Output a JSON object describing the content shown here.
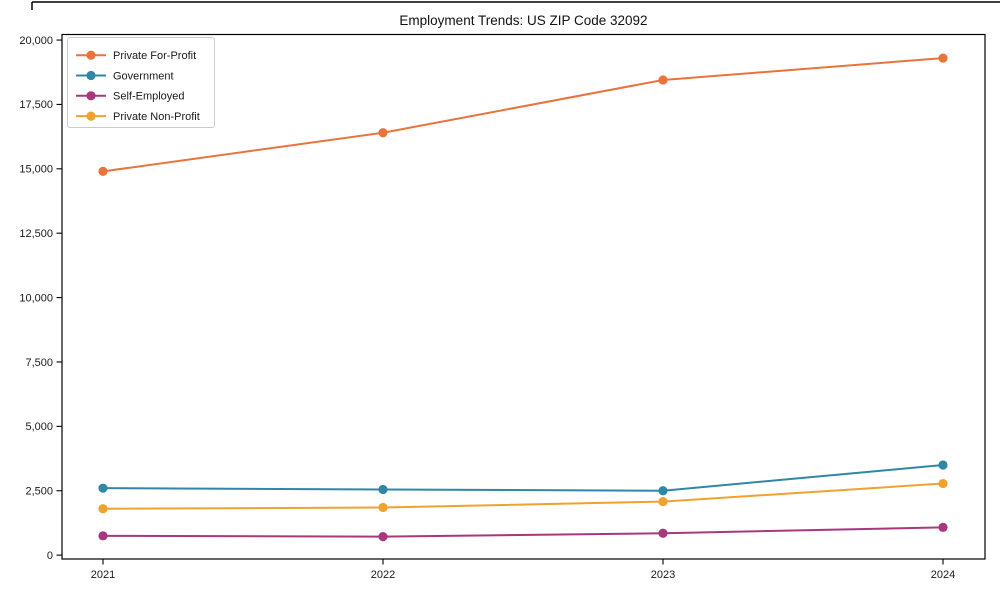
{
  "chart_data": {
    "type": "line",
    "title": "Employment Trends: US ZIP Code 32092",
    "x": [
      2021,
      2022,
      2023,
      2024
    ],
    "x_tick_labels": [
      "2021",
      "2022",
      "2023",
      "2024"
    ],
    "y_ticks": [
      0,
      2500,
      5000,
      7500,
      10000,
      12500,
      15000,
      17500,
      20000
    ],
    "y_tick_labels": [
      "0",
      "2,500",
      "5,000",
      "7,500",
      "10,000",
      "12,500",
      "15,000",
      "17,500",
      "20,000"
    ],
    "xlim": [
      2020.8536,
      2024.15
    ],
    "ylim": [
      -150,
      20215
    ],
    "grid": false,
    "legend_position": "upper-left",
    "marker": "circle",
    "series": [
      {
        "name": "Private For-Profit",
        "color": "#e8743b",
        "values": [
          14900,
          16400,
          18450,
          19300
        ]
      },
      {
        "name": "Government",
        "color": "#2f87a5",
        "values": [
          2600,
          2550,
          2500,
          3500
        ]
      },
      {
        "name": "Self-Employed",
        "color": "#a8377e",
        "values": [
          750,
          720,
          850,
          1080
        ]
      },
      {
        "name": "Private Non-Profit",
        "color": "#f0a22e",
        "values": [
          1800,
          1850,
          2080,
          2780
        ]
      }
    ],
    "axis_color": "#000000",
    "frame_color": "#000000",
    "legend_border_color": "#cccccc",
    "legend_bg_color": "#ffffff"
  }
}
